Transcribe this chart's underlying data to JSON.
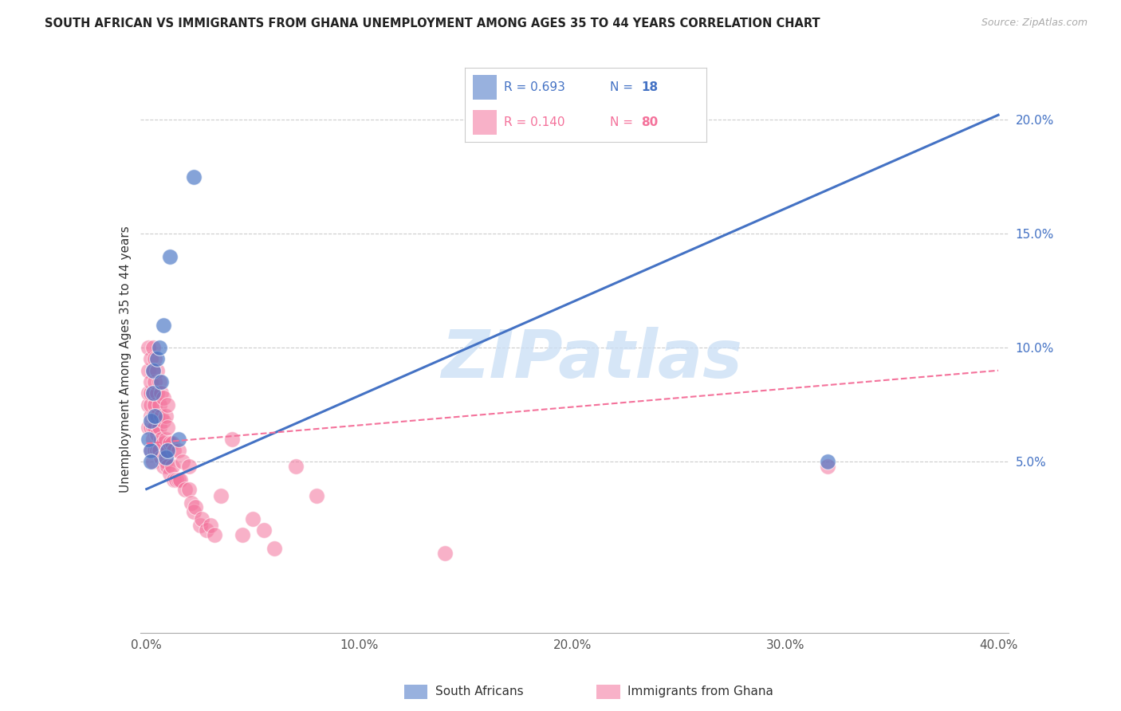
{
  "title": "SOUTH AFRICAN VS IMMIGRANTS FROM GHANA UNEMPLOYMENT AMONG AGES 35 TO 44 YEARS CORRELATION CHART",
  "source": "Source: ZipAtlas.com",
  "ylabel": "Unemployment Among Ages 35 to 44 years",
  "xlim": [
    -0.003,
    0.405
  ],
  "ylim": [
    -0.025,
    0.215
  ],
  "xticks": [
    0.0,
    0.1,
    0.2,
    0.3,
    0.4
  ],
  "xtick_labels": [
    "0.0%",
    "10.0%",
    "20.0%",
    "30.0%",
    "40.0%"
  ],
  "yticks_right": [
    0.05,
    0.1,
    0.15,
    0.2
  ],
  "ytick_right_labels": [
    "5.0%",
    "10.0%",
    "15.0%",
    "20.0%"
  ],
  "blue_color": "#4472C4",
  "pink_color": "#F4729B",
  "watermark_text": "ZIPatlas",
  "sa_points_x": [
    0.001,
    0.002,
    0.002,
    0.002,
    0.003,
    0.003,
    0.004,
    0.005,
    0.006,
    0.007,
    0.008,
    0.009,
    0.01,
    0.011,
    0.015,
    0.022,
    0.32
  ],
  "sa_points_y": [
    0.06,
    0.055,
    0.068,
    0.05,
    0.08,
    0.09,
    0.07,
    0.095,
    0.1,
    0.085,
    0.11,
    0.052,
    0.055,
    0.14,
    0.06,
    0.175,
    0.05
  ],
  "gh_points_x": [
    0.001,
    0.001,
    0.001,
    0.001,
    0.001,
    0.002,
    0.002,
    0.002,
    0.002,
    0.002,
    0.002,
    0.002,
    0.003,
    0.003,
    0.003,
    0.003,
    0.003,
    0.003,
    0.003,
    0.004,
    0.004,
    0.004,
    0.004,
    0.004,
    0.005,
    0.005,
    0.005,
    0.005,
    0.005,
    0.006,
    0.006,
    0.006,
    0.006,
    0.007,
    0.007,
    0.007,
    0.007,
    0.008,
    0.008,
    0.008,
    0.008,
    0.009,
    0.009,
    0.009,
    0.01,
    0.01,
    0.01,
    0.01,
    0.011,
    0.011,
    0.012,
    0.012,
    0.013,
    0.013,
    0.014,
    0.015,
    0.015,
    0.016,
    0.017,
    0.018,
    0.02,
    0.02,
    0.021,
    0.022,
    0.023,
    0.025,
    0.026,
    0.028,
    0.03,
    0.032,
    0.035,
    0.04,
    0.045,
    0.05,
    0.055,
    0.06,
    0.07,
    0.08,
    0.14,
    0.32
  ],
  "gh_points_y": [
    0.065,
    0.075,
    0.08,
    0.09,
    0.1,
    0.055,
    0.065,
    0.07,
    0.075,
    0.08,
    0.085,
    0.095,
    0.05,
    0.06,
    0.065,
    0.07,
    0.08,
    0.09,
    0.1,
    0.055,
    0.065,
    0.075,
    0.085,
    0.095,
    0.055,
    0.062,
    0.07,
    0.08,
    0.09,
    0.055,
    0.065,
    0.075,
    0.085,
    0.052,
    0.06,
    0.07,
    0.08,
    0.048,
    0.058,
    0.068,
    0.078,
    0.05,
    0.06,
    0.07,
    0.048,
    0.055,
    0.065,
    0.075,
    0.045,
    0.058,
    0.048,
    0.058,
    0.042,
    0.055,
    0.042,
    0.042,
    0.055,
    0.042,
    0.05,
    0.038,
    0.038,
    0.048,
    0.032,
    0.028,
    0.03,
    0.022,
    0.025,
    0.02,
    0.022,
    0.018,
    0.035,
    0.06,
    0.018,
    0.025,
    0.02,
    0.012,
    0.048,
    0.035,
    0.01,
    0.048
  ],
  "blue_line_x0": 0.0,
  "blue_line_x1": 0.4,
  "blue_line_y0": 0.038,
  "blue_line_y1": 0.202,
  "pink_line_x0": 0.0,
  "pink_line_x1": 0.4,
  "pink_line_y0": 0.058,
  "pink_line_y1": 0.09
}
